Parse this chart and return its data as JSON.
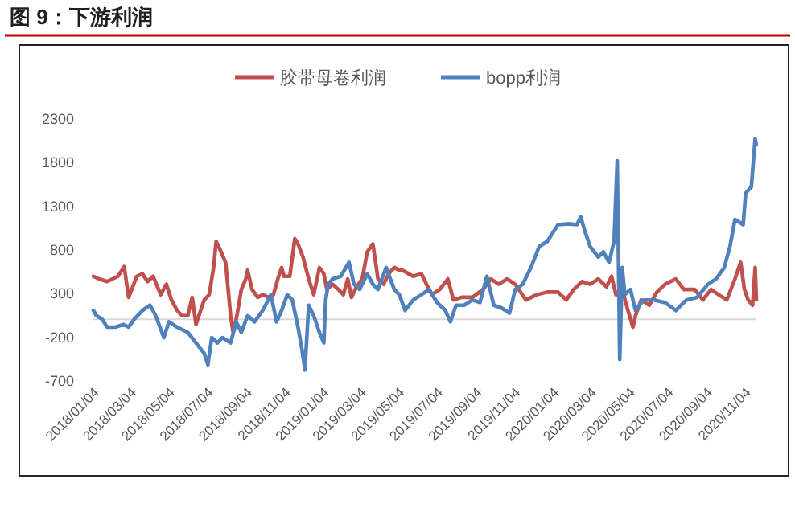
{
  "chart_data": {
    "type": "line",
    "title": "图 9：下游利润",
    "legend": "top",
    "grid": false,
    "line_style": "solid",
    "marker": "none",
    "xlim": [
      "2018-01-04",
      "2020-11-22"
    ],
    "xticks": [
      {
        "value": "2018-01-04",
        "label": "2018/01/04"
      },
      {
        "value": "2018-03-04",
        "label": "2018/03/04"
      },
      {
        "value": "2018-05-04",
        "label": "2018/05/04"
      },
      {
        "value": "2018-07-04",
        "label": "2018/07/04"
      },
      {
        "value": "2018-09-04",
        "label": "2018/09/04"
      },
      {
        "value": "2018-11-04",
        "label": "2018/11/04"
      },
      {
        "value": "2019-01-04",
        "label": "2019/01/04"
      },
      {
        "value": "2019-03-04",
        "label": "2019/03/04"
      },
      {
        "value": "2019-05-04",
        "label": "2019/05/04"
      },
      {
        "value": "2019-07-04",
        "label": "2019/07/04"
      },
      {
        "value": "2019-09-04",
        "label": "2019/09/04"
      },
      {
        "value": "2019-11-04",
        "label": "2019/11/04"
      },
      {
        "value": "2020-01-04",
        "label": "2020/01/04"
      },
      {
        "value": "2020-03-04",
        "label": "2020/03/04"
      },
      {
        "value": "2020-05-04",
        "label": "2020/05/04"
      },
      {
        "value": "2020-07-04",
        "label": "2020/07/04"
      },
      {
        "value": "2020-09-04",
        "label": "2020/09/04"
      },
      {
        "value": "2020-11-04",
        "label": "2020/11/04"
      }
    ],
    "ylim": [
      -700,
      2300
    ],
    "yticks": [
      -700,
      -200,
      300,
      800,
      1300,
      1800,
      2300
    ],
    "ref_lines": [
      {
        "axis": "y",
        "value": 0,
        "color": "#d9d9d9"
      }
    ],
    "series": [
      {
        "name": "胶带母卷利润",
        "color": "#c0504d",
        "x": [
          "2018-01-04",
          "2018-01-13",
          "2018-01-26",
          "2018-02-12",
          "2018-02-22",
          "2018-03-01",
          "2018-03-14",
          "2018-03-23",
          "2018-03-31",
          "2018-04-09",
          "2018-04-21",
          "2018-04-30",
          "2018-05-08",
          "2018-05-17",
          "2018-05-25",
          "2018-06-03",
          "2018-06-10",
          "2018-06-16",
          "2018-06-22",
          "2018-06-29",
          "2018-07-07",
          "2018-07-14",
          "2018-07-18",
          "2018-07-24",
          "2018-08-02",
          "2018-08-10",
          "2018-08-14",
          "2018-08-20",
          "2018-08-27",
          "2018-09-03",
          "2018-09-06",
          "2018-09-13",
          "2018-09-22",
          "2018-09-30",
          "2018-10-09",
          "2018-10-17",
          "2018-10-24",
          "2018-10-30",
          "2018-11-03",
          "2018-11-12",
          "2018-11-20",
          "2018-11-25",
          "2018-12-03",
          "2018-12-12",
          "2018-12-20",
          "2018-12-29",
          "2019-01-05",
          "2019-01-10",
          "2019-01-19",
          "2019-01-28",
          "2019-02-05",
          "2019-02-12",
          "2019-02-18",
          "2019-02-26",
          "2019-03-07",
          "2019-03-15",
          "2019-03-24",
          "2019-04-01",
          "2019-04-10",
          "2019-04-18",
          "2019-04-27",
          "2019-05-05",
          "2019-05-10",
          "2019-05-27",
          "2019-06-09",
          "2019-06-17",
          "2019-06-26",
          "2019-07-08",
          "2019-07-21",
          "2019-07-30",
          "2019-08-12",
          "2019-08-29",
          "2019-09-15",
          "2019-09-27",
          "2019-10-10",
          "2019-10-23",
          "2019-11-05",
          "2019-11-22",
          "2019-12-09",
          "2019-12-26",
          "2020-01-12",
          "2020-01-25",
          "2020-02-06",
          "2020-02-19",
          "2020-03-03",
          "2020-03-16",
          "2020-03-29",
          "2020-04-06",
          "2020-04-13",
          "2020-04-23",
          "2020-05-02",
          "2020-05-10",
          "2020-05-14",
          "2020-05-23",
          "2020-06-05",
          "2020-06-17",
          "2020-06-30",
          "2020-07-17",
          "2020-07-30",
          "2020-08-16",
          "2020-08-29",
          "2020-09-11",
          "2020-09-23",
          "2020-10-06",
          "2020-10-19",
          "2020-10-28",
          "2020-11-03",
          "2020-11-09",
          "2020-11-16",
          "2020-11-20",
          "2020-11-22"
        ],
        "values": [
          490,
          460,
          430,
          490,
          600,
          250,
          490,
          520,
          430,
          490,
          280,
          400,
          220,
          100,
          40,
          40,
          250,
          -60,
          70,
          220,
          280,
          590,
          890,
          800,
          650,
          40,
          -150,
          40,
          340,
          460,
          560,
          340,
          250,
          280,
          250,
          280,
          460,
          590,
          490,
          490,
          920,
          860,
          710,
          460,
          280,
          590,
          520,
          340,
          400,
          340,
          280,
          460,
          250,
          370,
          460,
          770,
          860,
          460,
          400,
          520,
          590,
          560,
          560,
          490,
          520,
          400,
          280,
          340,
          460,
          220,
          250,
          250,
          340,
          460,
          400,
          460,
          400,
          220,
          280,
          310,
          310,
          220,
          340,
          430,
          400,
          460,
          370,
          490,
          280,
          340,
          100,
          -90,
          40,
          220,
          160,
          310,
          400,
          460,
          340,
          340,
          220,
          340,
          280,
          220,
          460,
          650,
          340,
          220,
          160,
          590,
          220
        ]
      },
      {
        "name": "bopp利润",
        "color": "#4f81bd",
        "x": [
          "2018-01-04",
          "2018-01-09",
          "2018-01-18",
          "2018-01-26",
          "2018-02-08",
          "2018-02-21",
          "2018-03-01",
          "2018-03-10",
          "2018-03-23",
          "2018-04-04",
          "2018-04-13",
          "2018-04-26",
          "2018-05-04",
          "2018-05-17",
          "2018-06-03",
          "2018-06-16",
          "2018-06-29",
          "2018-07-05",
          "2018-07-11",
          "2018-07-20",
          "2018-07-28",
          "2018-08-10",
          "2018-08-19",
          "2018-08-27",
          "2018-09-06",
          "2018-09-17",
          "2018-09-30",
          "2018-10-13",
          "2018-10-22",
          "2018-10-30",
          "2018-11-08",
          "2018-11-16",
          "2018-11-25",
          "2018-12-01",
          "2018-12-06",
          "2018-12-12",
          "2018-12-20",
          "2018-12-29",
          "2019-01-05",
          "2019-01-08",
          "2019-01-12",
          "2019-01-19",
          "2019-02-01",
          "2019-02-14",
          "2019-02-22",
          "2019-03-03",
          "2019-03-15",
          "2019-03-24",
          "2019-04-01",
          "2019-04-14",
          "2019-04-27",
          "2019-05-05",
          "2019-05-14",
          "2019-05-27",
          "2019-06-09",
          "2019-06-21",
          "2019-07-04",
          "2019-07-17",
          "2019-07-25",
          "2019-08-03",
          "2019-08-16",
          "2019-08-29",
          "2019-09-10",
          "2019-09-21",
          "2019-10-02",
          "2019-10-14",
          "2019-10-27",
          "2019-11-05",
          "2019-11-17",
          "2019-11-30",
          "2019-12-13",
          "2019-12-26",
          "2020-01-12",
          "2020-01-29",
          "2020-02-11",
          "2020-02-17",
          "2020-02-23",
          "2020-03-03",
          "2020-03-16",
          "2020-03-24",
          "2020-04-02",
          "2020-04-10",
          "2020-04-15",
          "2020-04-19",
          "2020-04-23",
          "2020-04-27",
          "2020-05-06",
          "2020-05-14",
          "2020-05-27",
          "2020-06-13",
          "2020-06-30",
          "2020-07-17",
          "2020-08-03",
          "2020-08-20",
          "2020-09-06",
          "2020-09-19",
          "2020-10-02",
          "2020-10-11",
          "2020-10-19",
          "2020-11-01",
          "2020-11-05",
          "2020-11-14",
          "2020-11-20",
          "2020-11-22"
        ],
        "values": [
          100,
          40,
          0,
          -90,
          -90,
          -60,
          -90,
          0,
          100,
          160,
          40,
          -210,
          -30,
          -90,
          -150,
          -270,
          -390,
          -520,
          -210,
          -270,
          -210,
          -270,
          -30,
          -150,
          40,
          -30,
          100,
          280,
          -30,
          100,
          280,
          220,
          -90,
          -330,
          -580,
          160,
          40,
          -150,
          -270,
          220,
          400,
          460,
          490,
          650,
          400,
          340,
          520,
          400,
          340,
          590,
          340,
          280,
          100,
          220,
          280,
          340,
          190,
          100,
          -30,
          160,
          160,
          220,
          190,
          490,
          160,
          130,
          70,
          340,
          400,
          590,
          830,
          890,
          1080,
          1090,
          1080,
          1170,
          1020,
          830,
          710,
          770,
          650,
          890,
          1810,
          -460,
          590,
          280,
          340,
          100,
          220,
          220,
          190,
          100,
          220,
          250,
          400,
          460,
          590,
          830,
          1140,
          1080,
          1440,
          1510,
          2060,
          1990
        ]
      }
    ]
  }
}
